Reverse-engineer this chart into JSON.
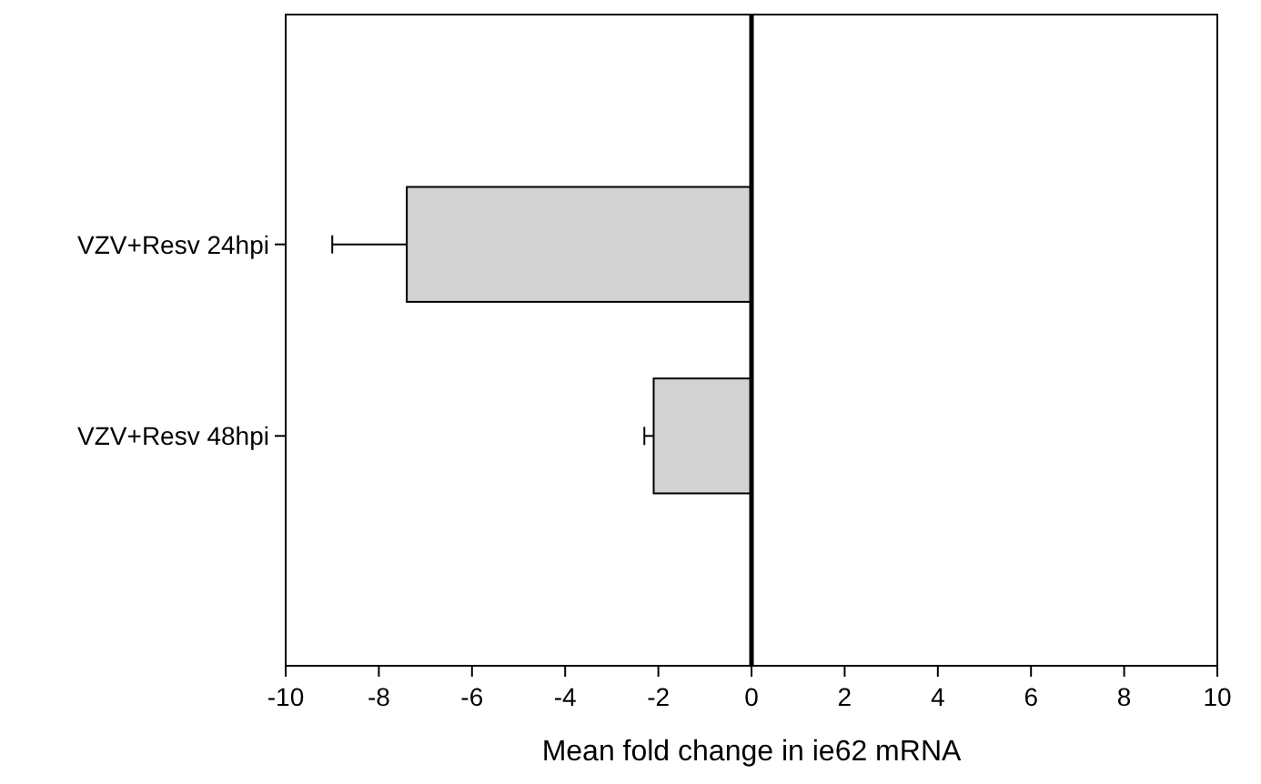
{
  "chart_data": {
    "type": "bar",
    "orientation": "horizontal",
    "xlabel": "Mean fold change in ie62 mRNA",
    "categories": [
      "VZV+Resv 24hpi",
      "VZV+Resv 48hpi"
    ],
    "values": [
      -7.4,
      -2.1
    ],
    "color": "#d3d3d3",
    "errors": [
      [
        -9.0,
        -7.4
      ],
      [
        -2.3,
        -2.1
      ]
    ],
    "xlim": [
      -10,
      10
    ],
    "xticks": [
      -10,
      -8,
      -6,
      -4,
      -2,
      0,
      2,
      4,
      6,
      8,
      10
    ],
    "ref_lines": [
      {
        "axis": "x",
        "value": 0,
        "color": "#000000"
      }
    ],
    "grid": false
  }
}
